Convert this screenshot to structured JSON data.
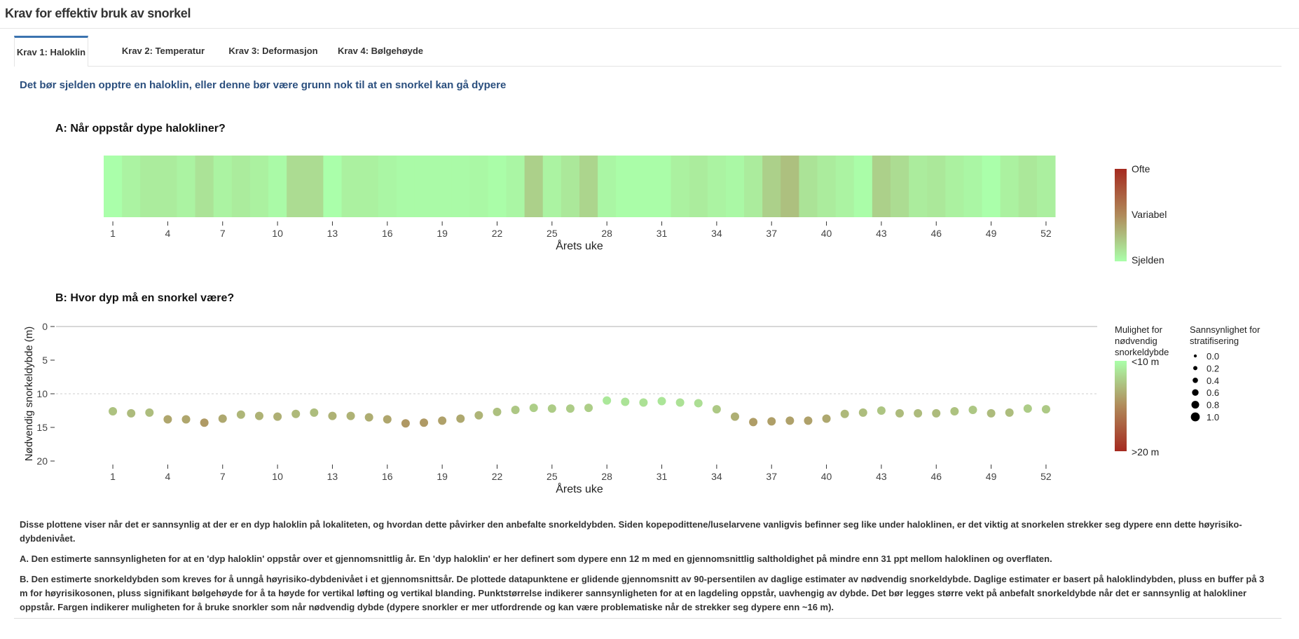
{
  "header": {
    "title": "Krav for effektiv bruk av snorkel"
  },
  "tabs": [
    {
      "label": "Krav 1: Haloklin",
      "active": true
    },
    {
      "label": "Krav 2: Temperatur",
      "active": false
    },
    {
      "label": "Krav 3: Deformasjon",
      "active": false
    },
    {
      "label": "Krav 4: Bølgehøyde",
      "active": false
    }
  ],
  "subtitle": "Det bør sjelden opptre en haloklin, eller denne bør være grunn nok til at en snorkel kan gå dypere",
  "colors": {
    "accent": "#3b73af",
    "low": "#aaffaa",
    "mid": "#b08a5a",
    "high": "#a52a20"
  },
  "chart_data": [
    {
      "type": "heatmap",
      "title": "A: Når oppstår dype halokliner?",
      "xlabel": "Årets uke",
      "x_ticks": [
        1,
        4,
        7,
        10,
        13,
        16,
        19,
        22,
        25,
        28,
        31,
        34,
        37,
        40,
        43,
        46,
        49,
        52
      ],
      "weeks": [
        1,
        2,
        3,
        4,
        5,
        6,
        7,
        8,
        9,
        10,
        11,
        12,
        13,
        14,
        15,
        16,
        17,
        18,
        19,
        20,
        21,
        22,
        23,
        24,
        25,
        26,
        27,
        28,
        29,
        30,
        31,
        32,
        33,
        34,
        35,
        36,
        37,
        38,
        39,
        40,
        41,
        42,
        43,
        44,
        45,
        46,
        47,
        48,
        49,
        50,
        51,
        52
      ],
      "values": [
        0.0,
        0.05,
        0.08,
        0.08,
        0.05,
        0.12,
        0.05,
        0.08,
        0.06,
        0.02,
        0.15,
        0.15,
        0.0,
        0.06,
        0.06,
        0.04,
        0.02,
        0.02,
        0.02,
        0.02,
        0.03,
        0.01,
        0.04,
        0.2,
        0.05,
        0.1,
        0.18,
        0.04,
        0.01,
        0.01,
        0.01,
        0.06,
        0.08,
        0.05,
        0.03,
        0.08,
        0.2,
        0.27,
        0.12,
        0.08,
        0.05,
        0.01,
        0.2,
        0.15,
        0.08,
        0.1,
        0.06,
        0.04,
        0.0,
        0.06,
        0.1,
        0.07
      ],
      "legend": {
        "labels": [
          "Ofte",
          "Variabel",
          "Sjelden"
        ]
      }
    },
    {
      "type": "scatter",
      "title": "B: Hvor dyp må en snorkel være?",
      "xlabel": "Årets uke",
      "ylabel": "Nødvendig snorkeldybde (m)",
      "ylim": [
        20,
        0
      ],
      "y_ticks": [
        0,
        5,
        10,
        15,
        20
      ],
      "x_ticks": [
        1,
        4,
        7,
        10,
        13,
        16,
        19,
        22,
        25,
        28,
        31,
        34,
        37,
        40,
        43,
        46,
        49,
        52
      ],
      "reference_line": 10,
      "weeks": [
        1,
        2,
        3,
        4,
        5,
        6,
        7,
        8,
        9,
        10,
        11,
        12,
        13,
        14,
        15,
        16,
        17,
        18,
        19,
        20,
        21,
        22,
        23,
        24,
        25,
        26,
        27,
        28,
        29,
        30,
        31,
        32,
        33,
        34,
        35,
        36,
        37,
        38,
        39,
        40,
        41,
        42,
        43,
        44,
        45,
        46,
        47,
        48,
        49,
        50,
        51,
        52
      ],
      "depth": [
        12.6,
        12.9,
        12.8,
        13.8,
        13.8,
        14.3,
        13.7,
        13.1,
        13.3,
        13.4,
        13.0,
        12.8,
        13.3,
        13.3,
        13.5,
        13.8,
        14.4,
        14.3,
        14.0,
        13.7,
        13.2,
        12.7,
        12.4,
        12.1,
        12.2,
        12.2,
        12.1,
        11.0,
        11.2,
        11.3,
        11.1,
        11.3,
        11.4,
        12.3,
        13.4,
        14.2,
        14.1,
        14.0,
        14.0,
        13.7,
        13.0,
        12.8,
        12.5,
        12.9,
        12.9,
        12.9,
        12.6,
        12.4,
        12.9,
        12.8,
        12.2,
        12.3
      ],
      "stratification_probability": 0.7,
      "color_legend": {
        "title": "Mulighet for nødvendig snorkeldybde",
        "labels": [
          "<10 m",
          ">20 m"
        ]
      },
      "size_legend": {
        "title": "Sannsynlighet for stratifisering",
        "labels": [
          "0.0",
          "0.2",
          "0.4",
          "0.6",
          "0.8",
          "1.0"
        ]
      }
    }
  ],
  "notes": [
    "Disse plottene viser når det er sannsynlig at der er en dyp haloklin på lokaliteten, og hvordan dette påvirker den anbefalte snorkeldybden. Siden kopepodittene/luselarvene vanligvis befinner seg like under haloklinen, er det viktig at snorkelen strekker seg dypere enn dette høyrisiko-dybdenivået.",
    "A. Den estimerte sannsynligheten for at en 'dyp haloklin' oppstår over et gjennomsnittlig år. En 'dyp haloklin' er her definert som dypere enn 12 m med en gjennomsnittlig saltholdighet på mindre enn 31 ppt mellom haloklinen og overflaten.",
    "B. Den estimerte snorkeldybden som kreves for å unngå høyrisiko-dybdenivået i et gjennomsnittsår. De plottede datapunktene er glidende gjennomsnitt av 90-persentilen av daglige estimater av nødvendig snorkeldybde. Daglige estimater er basert på haloklindybden, pluss en buffer på 3 m for høyrisikosonen, pluss signifikant bølgehøyde for å ta høyde for vertikal løfting og vertikal blanding. Punktstørrelse indikerer sannsynligheten for at en lagdeling oppstår, uavhengig av dybde. Det bør legges større vekt på anbefalt snorkeldybde når det er sannsynlig at halokliner oppstår. Fargen indikerer muligheten for å bruke snorkler som når nødvendig dybde (dypere snorkler er mer utfordrende og kan være problematiske når de strekker seg dypere enn ~16 m)."
  ]
}
